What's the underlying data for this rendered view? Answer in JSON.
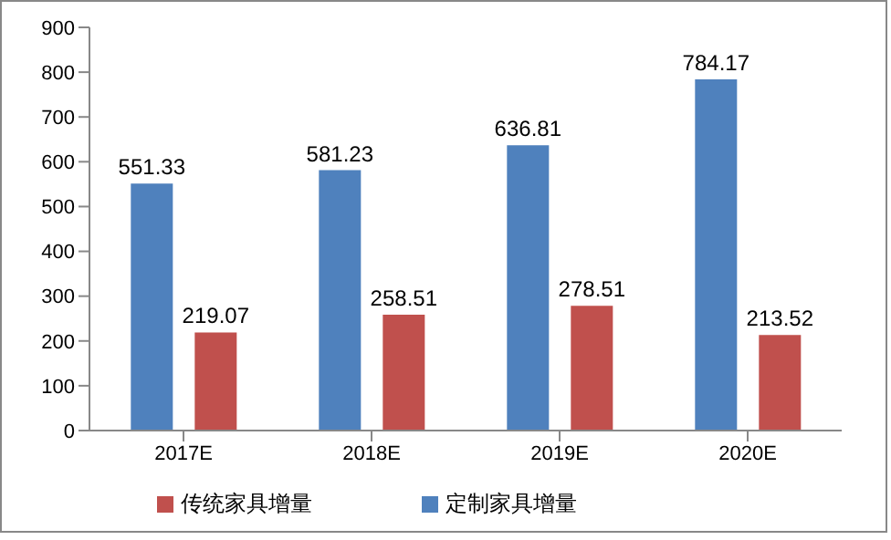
{
  "chart_data": {
    "type": "bar",
    "categories": [
      "2017E",
      "2018E",
      "2019E",
      "2020E"
    ],
    "series": [
      {
        "name": "定制家具增量",
        "color": "#4f81bd",
        "values": [
          551.33,
          581.23,
          636.81,
          784.17
        ]
      },
      {
        "name": "传统家具增量",
        "color": "#c0504d",
        "values": [
          219.07,
          258.51,
          278.51,
          213.52
        ]
      }
    ],
    "ylim": [
      0,
      900
    ],
    "yticks": [
      0,
      100,
      200,
      300,
      400,
      500,
      600,
      700,
      800,
      900
    ],
    "data_labels": true,
    "legend": "bottom",
    "grid": false
  }
}
